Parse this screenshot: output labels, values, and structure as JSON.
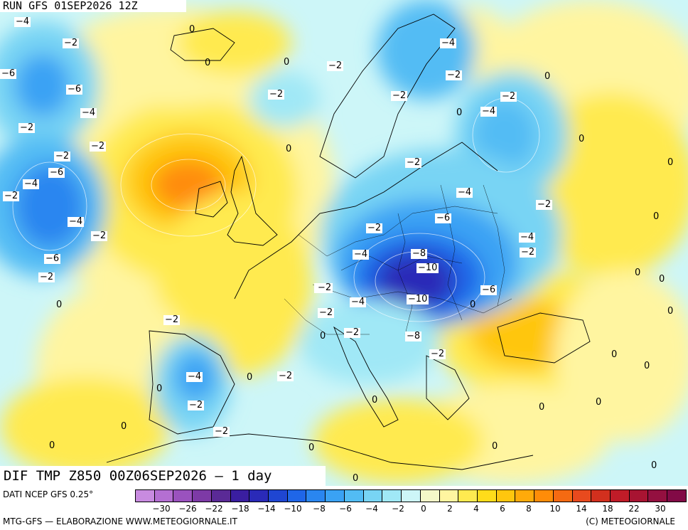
{
  "header": {
    "run_label": "RUN GFS 01SEP2026 12Z"
  },
  "title": {
    "text": "DIF TMP Z850 00Z06SEP2026 — 1 day"
  },
  "source": {
    "data": "DATI NCEP GFS 0.25°",
    "credit_left": "MTG-GFS — ELABORAZIONE WWW.METEOGIORNALE.IT",
    "credit_right": "(C) METEOGIORNALE"
  },
  "legend": {
    "colors": [
      "#c88be0",
      "#b46fd2",
      "#9a52be",
      "#7d3aa6",
      "#5a2a96",
      "#3a1ea0",
      "#2a2ab8",
      "#1f46d2",
      "#1f66e8",
      "#2a86f0",
      "#3aa2f4",
      "#52bcf4",
      "#78d4f4",
      "#a0e8f6",
      "#cdf6f8",
      "#f4f8c8",
      "#fff5a0",
      "#ffea50",
      "#ffdc1a",
      "#ffc60e",
      "#ffaa0a",
      "#ff8c08",
      "#f56a12",
      "#e84a1e",
      "#d2301e",
      "#c01c28",
      "#a81432",
      "#941040",
      "#820a46"
    ],
    "ticks": [
      "−30",
      "−26",
      "−22",
      "−18",
      "−14",
      "−10",
      "−8",
      "−6",
      "−4",
      "−2",
      "0",
      "2",
      "4",
      "6",
      "8",
      "10",
      "14",
      "18",
      "22",
      "30"
    ]
  },
  "map_labels": [
    {
      "t": "−4",
      "box": true
    },
    {
      "t": "−2",
      "box": true
    },
    {
      "t": "0",
      "box": false
    },
    {
      "t": "0",
      "box": false
    },
    {
      "t": "−6",
      "box": true
    },
    {
      "t": "−6",
      "box": true
    },
    {
      "t": "−4",
      "box": true
    },
    {
      "t": "−2",
      "box": true
    },
    {
      "t": "−2",
      "box": true
    },
    {
      "t": "−2",
      "box": true
    },
    {
      "t": "−6",
      "box": true
    },
    {
      "t": "−4",
      "box": true
    },
    {
      "t": "−2",
      "box": true
    },
    {
      "t": "−4",
      "box": true
    },
    {
      "t": "−2",
      "box": true
    },
    {
      "t": "−6",
      "box": true
    },
    {
      "t": "−2",
      "box": true
    },
    {
      "t": "0",
      "box": false
    },
    {
      "t": "−2",
      "box": true
    },
    {
      "t": "−2",
      "box": true
    },
    {
      "t": "0",
      "box": false
    },
    {
      "t": "−2",
      "box": true
    },
    {
      "t": "−4",
      "box": true
    },
    {
      "t": "−2",
      "box": true
    },
    {
      "t": "−2",
      "box": true
    },
    {
      "t": "0",
      "box": false
    },
    {
      "t": "−2",
      "box": true
    },
    {
      "t": "−4",
      "box": true
    },
    {
      "t": "0",
      "box": false
    },
    {
      "t": "−2",
      "box": true
    },
    {
      "t": "−4",
      "box": true
    },
    {
      "t": "−6",
      "box": true
    },
    {
      "t": "−2",
      "box": true
    },
    {
      "t": "−4",
      "box": true
    },
    {
      "t": "−8",
      "box": true
    },
    {
      "t": "−10",
      "box": true
    },
    {
      "t": "−2",
      "box": true
    },
    {
      "t": "−4",
      "box": true
    },
    {
      "t": "−2",
      "box": true
    },
    {
      "t": "−10",
      "box": true
    },
    {
      "t": "−8",
      "box": true
    },
    {
      "t": "−2",
      "box": true
    },
    {
      "t": "−6",
      "box": true
    },
    {
      "t": "−4",
      "box": true
    },
    {
      "t": "−2",
      "box": true
    },
    {
      "t": "0",
      "box": false
    },
    {
      "t": "−2",
      "box": true
    },
    {
      "t": "0",
      "box": false
    },
    {
      "t": "−4",
      "box": true
    },
    {
      "t": "−2",
      "box": true
    },
    {
      "t": "0",
      "box": false
    },
    {
      "t": "−2",
      "box": true
    },
    {
      "t": "0",
      "box": false
    },
    {
      "t": "−2",
      "box": true
    },
    {
      "t": "0",
      "box": false
    },
    {
      "t": "0",
      "box": false
    },
    {
      "t": "0",
      "box": false
    },
    {
      "t": "0",
      "box": false
    },
    {
      "t": "0",
      "box": false
    },
    {
      "t": "0",
      "box": false
    },
    {
      "t": "0",
      "box": false
    },
    {
      "t": "0",
      "box": false
    },
    {
      "t": "0",
      "box": false
    },
    {
      "t": "0",
      "box": false
    },
    {
      "t": "0",
      "box": false
    },
    {
      "t": "0",
      "box": false
    },
    {
      "t": "0",
      "box": false
    },
    {
      "t": "0",
      "box": false
    },
    {
      "t": "0",
      "box": false
    },
    {
      "t": "0",
      "box": false
    },
    {
      "t": "0",
      "box": false
    },
    {
      "t": "0",
      "box": false
    },
    {
      "t": "−2",
      "box": true
    },
    {
      "t": "−2",
      "box": true
    }
  ]
}
